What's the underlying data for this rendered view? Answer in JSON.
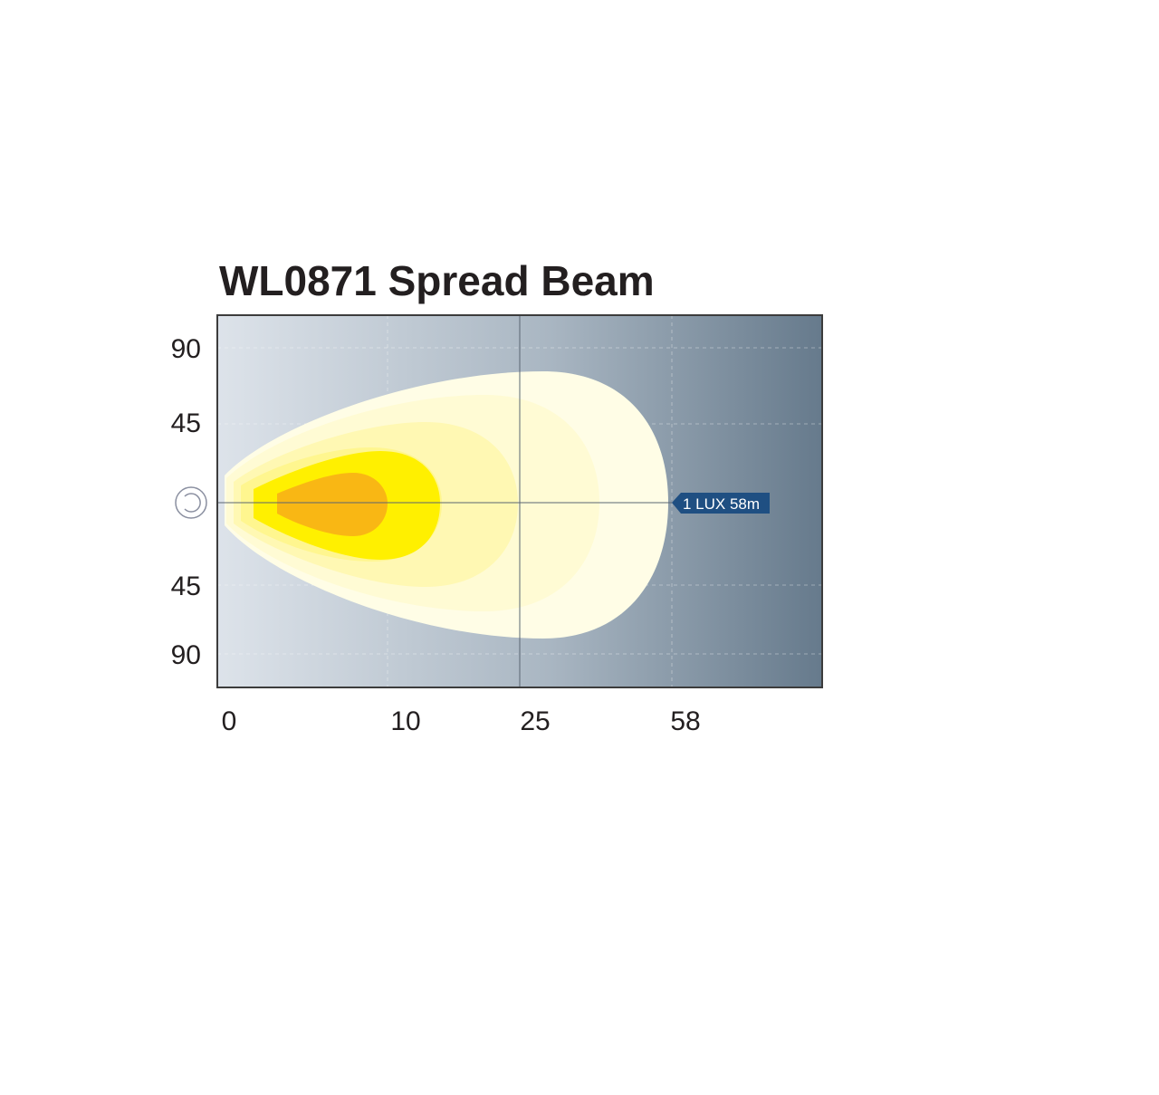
{
  "chart_data": {
    "type": "area",
    "title": "WL0871 Spread Beam",
    "x_tick_labels": [
      "0",
      "10",
      "25",
      "58"
    ],
    "y_tick_labels": [
      "90",
      "45",
      "",
      "45",
      "90"
    ],
    "lux_label": "1 LUX 58m",
    "grid": true,
    "zones": [
      {
        "level": 1,
        "color": "#f9b714"
      },
      {
        "level": 2,
        "color": "#fff000"
      },
      {
        "level": 3,
        "color": "#fff68f"
      },
      {
        "level": 4,
        "color": "#fff8b3"
      },
      {
        "level": 5,
        "color": "#fffbd4"
      },
      {
        "level": 6,
        "color": "#fffde6"
      }
    ]
  },
  "colors": {
    "background_start": "#dde3ea",
    "background_end": "#667a8c",
    "label_fill": "#1f4f82",
    "frame": "#3c3c3c"
  },
  "icons": {
    "origin": "lamp-origin-icon"
  }
}
